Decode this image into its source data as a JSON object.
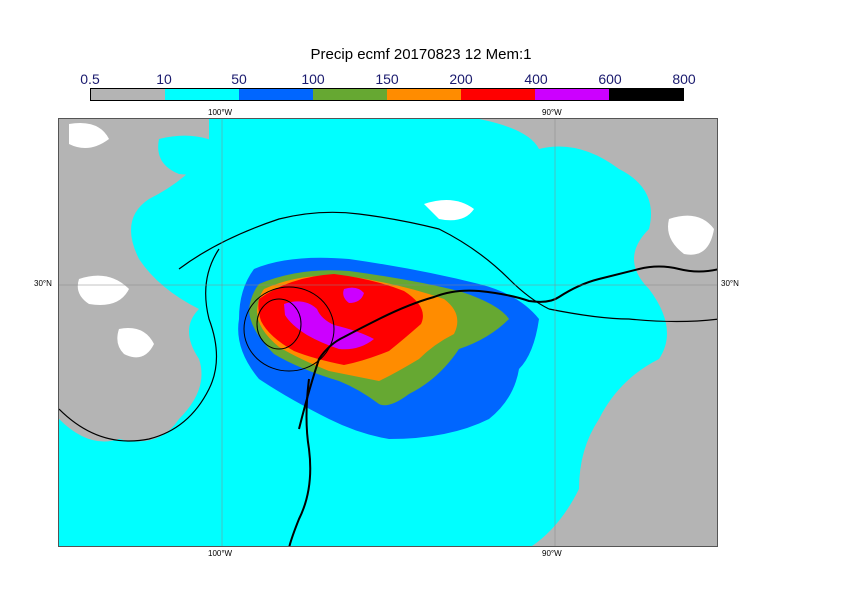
{
  "title": "Precip ecmf 20170823 12 Mem:1",
  "legend": {
    "labels": [
      "0.5",
      "10",
      "50",
      "100",
      "150",
      "200",
      "400",
      "600",
      "800"
    ],
    "colors": [
      "#b4b4b4",
      "#00ffff",
      "#0066ff",
      "#66a832",
      "#ff8c00",
      "#ff0000",
      "#cc00ff",
      "#000000"
    ]
  },
  "axes": {
    "lon_top_left": "100°W",
    "lon_top_right": "90°W",
    "lon_bottom_left": "100°W",
    "lon_bottom_right": "90°W",
    "lat_left": "30°N",
    "lat_right": "30°N"
  },
  "colors": {
    "land_dry": "#b4b4b4",
    "no_precip": "#ffffff",
    "coast": "#000000"
  }
}
